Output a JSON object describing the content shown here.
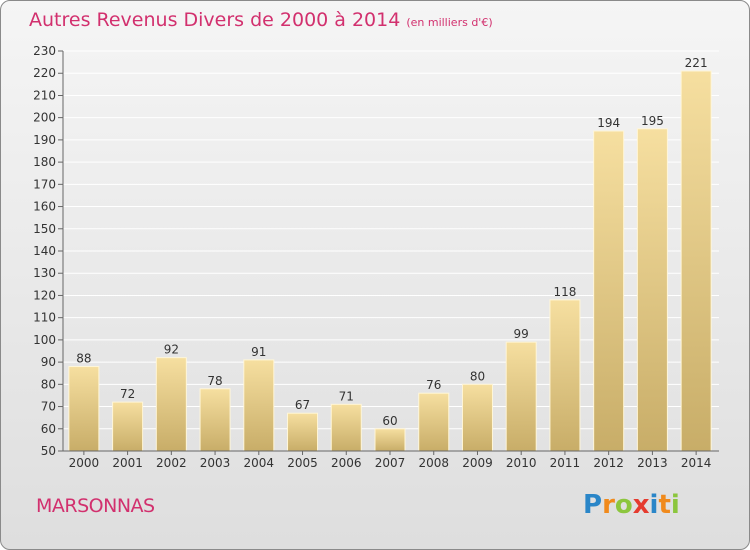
{
  "header": {
    "title": "Autres Revenus Divers de 2000 à 2014",
    "subtitle": "(en milliers d'€)"
  },
  "footer": {
    "commune": "MARSONNAS"
  },
  "brand": {
    "letters": [
      {
        "char": "P",
        "color": "#2a86c8"
      },
      {
        "char": "r",
        "color": "#f08a1c"
      },
      {
        "char": "o",
        "color": "#8cc63e"
      },
      {
        "char": "x",
        "color": "#e53b2f"
      },
      {
        "char": "i",
        "color": "#2a86c8"
      },
      {
        "char": "t",
        "color": "#f08a1c"
      },
      {
        "char": "i",
        "color": "#8cc63e"
      }
    ]
  },
  "chart_data": {
    "type": "bar",
    "categories": [
      "2000",
      "2001",
      "2002",
      "2003",
      "2004",
      "2005",
      "2006",
      "2007",
      "2008",
      "2009",
      "2010",
      "2011",
      "2012",
      "2013",
      "2014"
    ],
    "values": [
      88,
      72,
      92,
      78,
      91,
      67,
      71,
      60,
      76,
      80,
      99,
      118,
      194,
      195,
      221
    ],
    "ylim": [
      50,
      230
    ],
    "yticks": [
      50,
      60,
      70,
      80,
      90,
      100,
      110,
      120,
      130,
      140,
      150,
      160,
      170,
      180,
      190,
      200,
      210,
      220,
      230
    ],
    "grid": true,
    "legend": "none",
    "colors": {
      "bar_light": "#f6dfa0",
      "bar_dark": "#c8ad68",
      "grid": "#ffffff",
      "axis_text": "#333333",
      "title": "#d2306e"
    }
  }
}
